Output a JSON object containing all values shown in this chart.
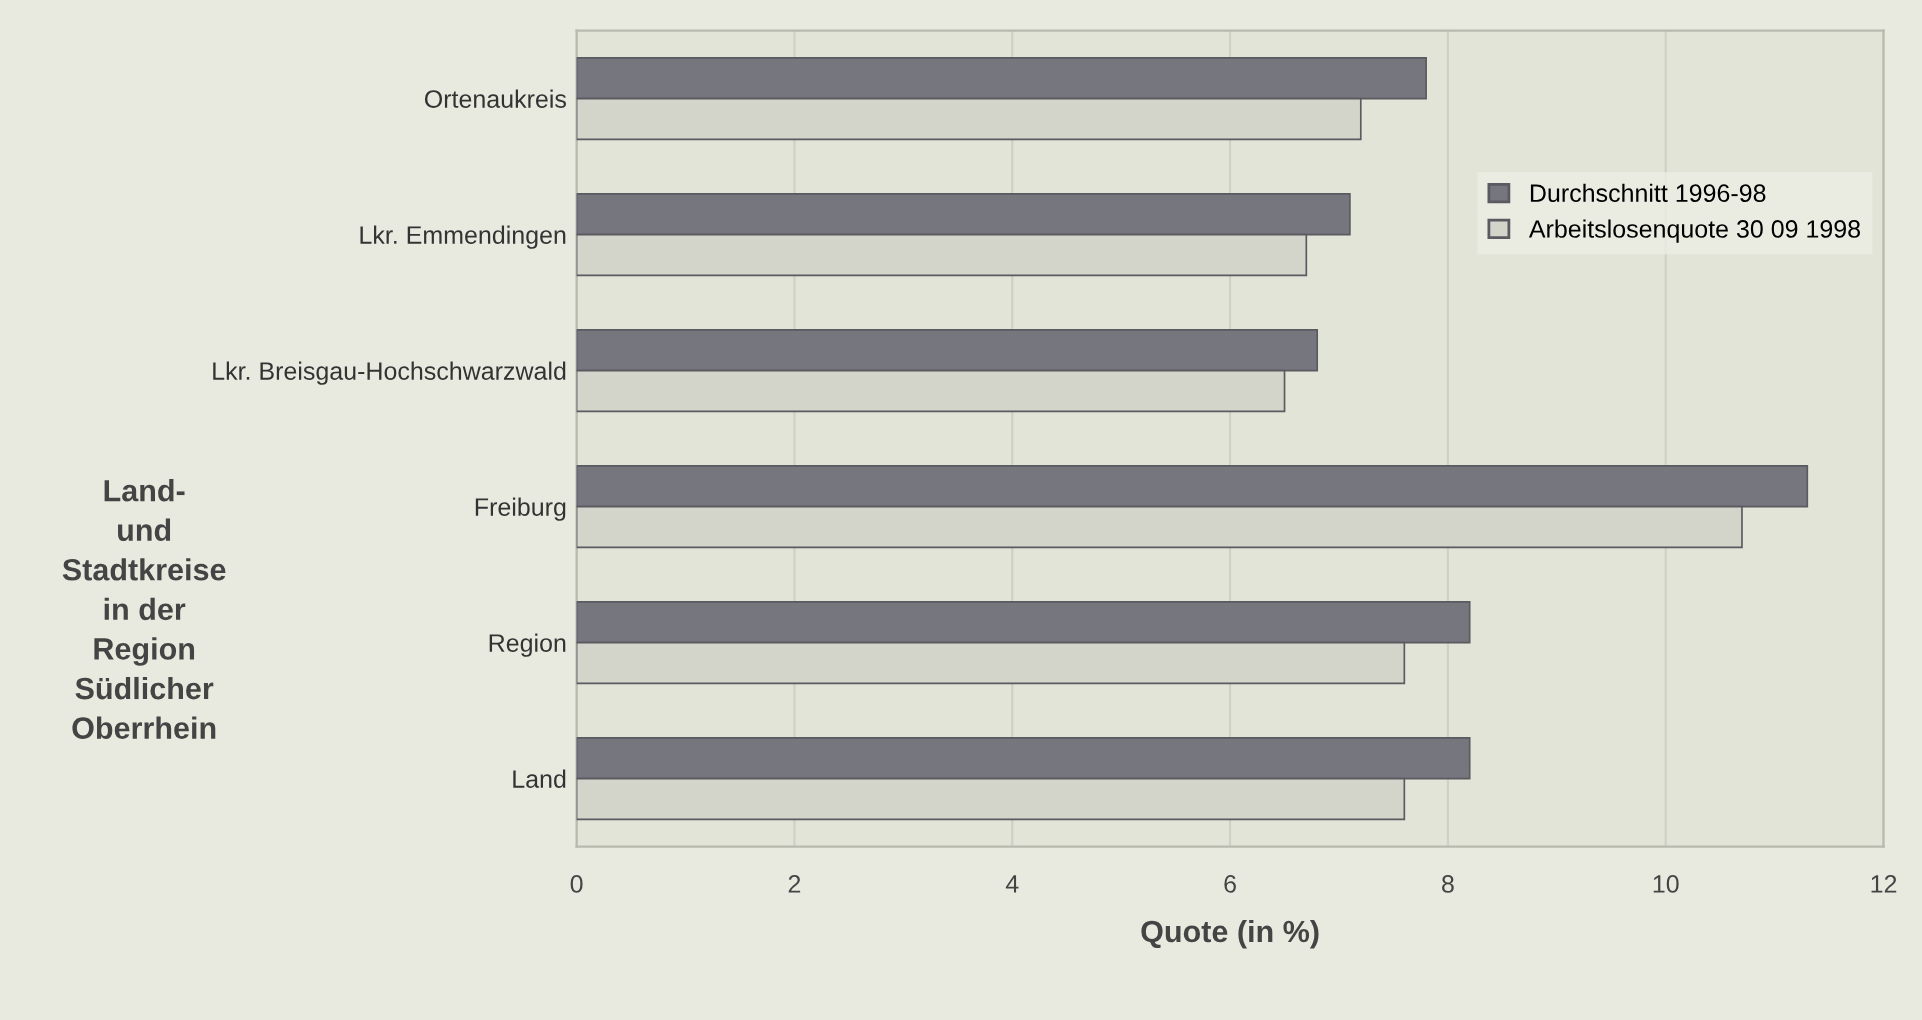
{
  "chart_data": {
    "type": "bar",
    "orientation": "horizontal",
    "categories": [
      "Ortenaukreis",
      "Lkr. Emmendingen",
      "Lkr. Breisgau-Hochschwarzwald",
      "Freiburg",
      "Region",
      "Land"
    ],
    "series": [
      {
        "name": "Durchschnitt 1996-98",
        "color": "#76767e",
        "values": [
          7.8,
          7.1,
          6.8,
          11.3,
          8.2,
          8.2
        ]
      },
      {
        "name": "Arbeitslosenquote 30 09 1998",
        "color": "#d3d5cb",
        "values": [
          7.2,
          6.7,
          6.5,
          10.7,
          7.6,
          7.6
        ]
      }
    ],
    "xlabel": "Quote (in %)",
    "ylabel": "Land-\nund\nStadtkreise\nin der\nRegion\nSüdlicher\nOberrhein",
    "xlim": [
      0,
      12
    ],
    "xticks": [
      0,
      2,
      4,
      6,
      8,
      10,
      12
    ],
    "grid": "x",
    "legend": "top right"
  }
}
